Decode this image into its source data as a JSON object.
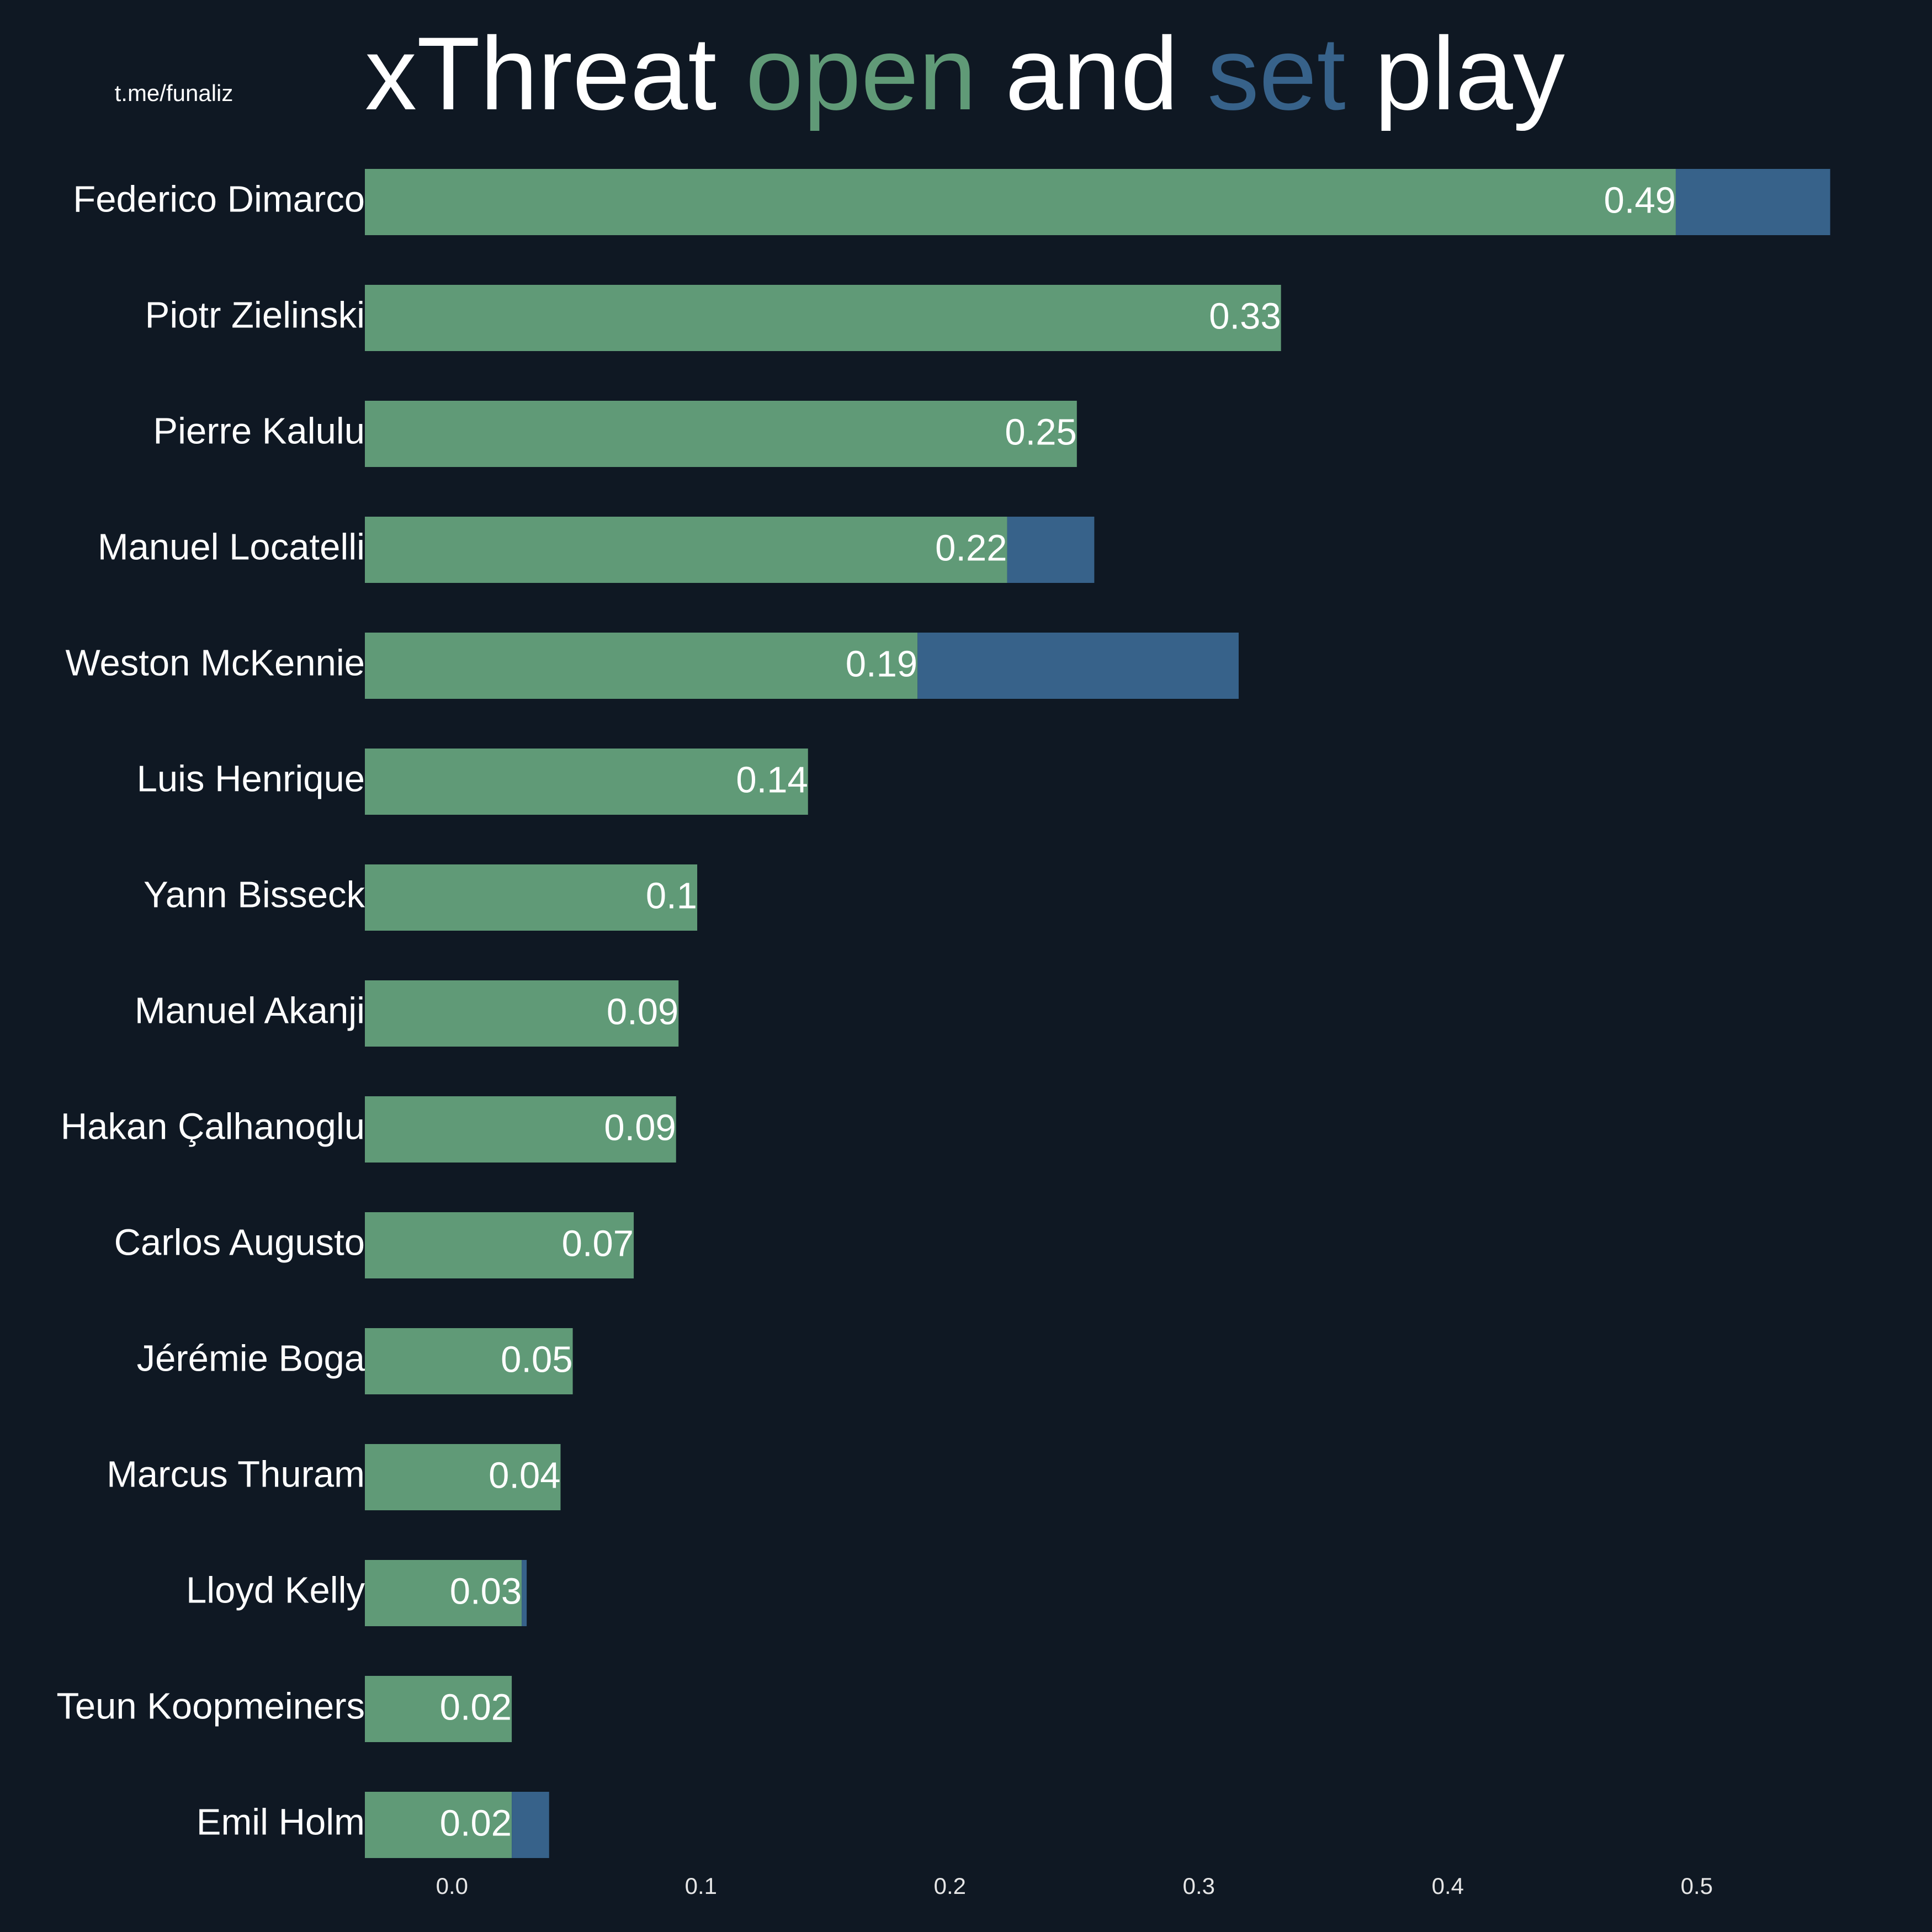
{
  "chart_data": {
    "type": "barh_stacked",
    "watermark": "t.me/funaliz",
    "title_parts": [
      "xThreat",
      "and",
      "play"
    ],
    "categories": [
      "Federico Dimarco",
      "Piotr Zielinski",
      "Pierre Kalulu",
      "Manuel Locatelli",
      "Weston McKennie",
      "Luis Henrique",
      "Yann Bisseck",
      "Manuel Akanji",
      "Hakan Çalhanoglu",
      "Carlos Augusto",
      "Jérémie Boga",
      "Marcus Thuram",
      "Lloyd Kelly",
      "Teun Koopmeiners",
      "Emil Holm"
    ],
    "series": [
      {
        "name": "open",
        "color": "#609a77",
        "values": [
          0.4916,
          0.333,
          0.251,
          0.223,
          0.187,
          0.143,
          0.0985,
          0.091,
          0.09,
          0.073,
          0.0485,
          0.0436,
          0.028,
          0.024,
          0.024
        ],
        "value_labels": [
          "0.49",
          "0.33",
          "0.25",
          "0.22",
          "0.19",
          "0.14",
          "0.1",
          "0.09",
          "0.09",
          "0.07",
          "0.05",
          "0.04",
          "0.03",
          "0.02",
          "0.02"
        ]
      },
      {
        "name": "set",
        "color": "#37628a",
        "values": [
          0.062,
          0,
          0,
          0.035,
          0.129,
          0,
          0,
          0,
          0,
          0,
          0,
          0,
          0.002,
          0,
          0.015
        ]
      }
    ],
    "xlim": [
      -0.035,
      0.571
    ],
    "xticks": [
      {
        "value": 0,
        "label": "0.0"
      },
      0.1,
      0.2,
      0.3,
      0.4,
      0.5
    ]
  }
}
